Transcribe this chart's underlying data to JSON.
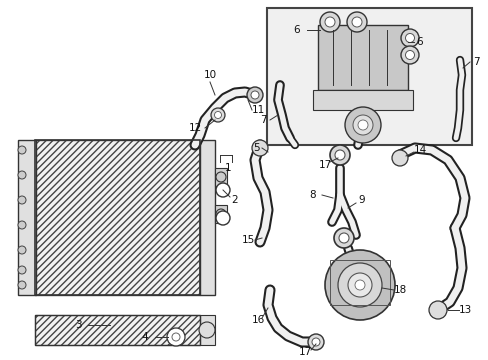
{
  "bg_color": "#ffffff",
  "lc": "#333333",
  "figsize": [
    4.89,
    3.6
  ],
  "dpi": 100,
  "xlim": [
    0,
    489
  ],
  "ylim": [
    0,
    360
  ]
}
